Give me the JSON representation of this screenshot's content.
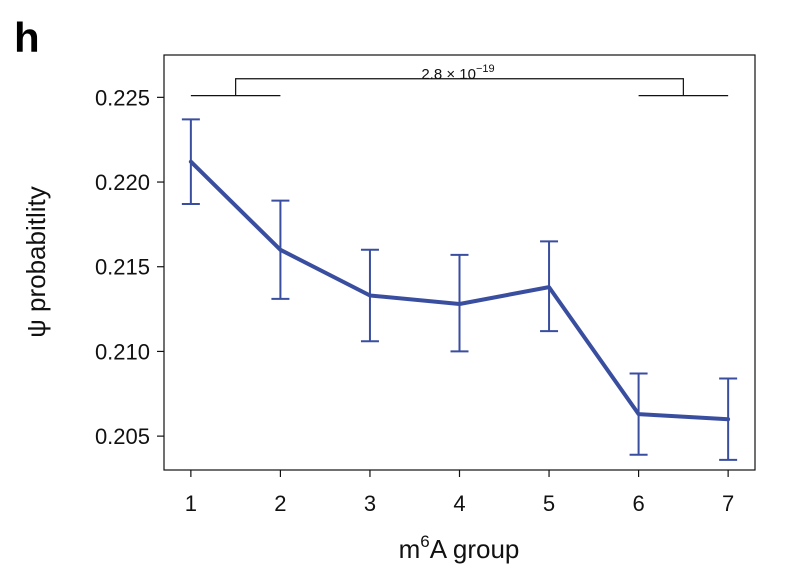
{
  "panel_label": "h",
  "chart_data": {
    "type": "line",
    "title": "",
    "xlabel_base": "m",
    "xlabel_sup": "6",
    "xlabel_rest": "A group",
    "ylabel": "ψ probabitlity",
    "x": [
      1,
      2,
      3,
      4,
      5,
      6,
      7
    ],
    "xlim": [
      0.7,
      7.3
    ],
    "ylim": [
      0.203,
      0.2275
    ],
    "yticks": [
      0.205,
      0.21,
      0.215,
      0.22,
      0.225
    ],
    "ytick_labels": [
      "0.205",
      "0.210",
      "0.215",
      "0.220",
      "0.225"
    ],
    "xtick_labels": [
      "1",
      "2",
      "3",
      "4",
      "5",
      "6",
      "7"
    ],
    "series": [
      {
        "name": "ψ probability",
        "color": "#3a4ea0",
        "values": [
          0.2212,
          0.216,
          0.2133,
          0.2128,
          0.2138,
          0.2063,
          0.206
        ],
        "err_low": [
          0.2187,
          0.2131,
          0.2106,
          0.21,
          0.2112,
          0.2039,
          0.2036
        ],
        "err_high": [
          0.2237,
          0.2189,
          0.216,
          0.2157,
          0.2165,
          0.2087,
          0.2084
        ]
      }
    ],
    "annotation": {
      "base": "2.8 × 10",
      "exp": "−19",
      "left_group": [
        1,
        2
      ],
      "right_group": [
        6,
        7
      ],
      "level_low": 0.2251,
      "level_high": 0.2261
    }
  }
}
